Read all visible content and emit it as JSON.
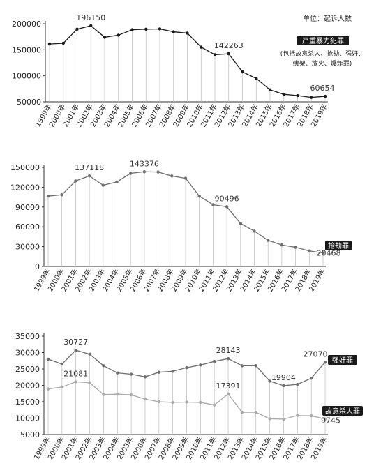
{
  "unit_note": "单位：起诉人数",
  "chart_data": [
    {
      "type": "line",
      "categories": [
        "1999年",
        "2000年",
        "2001年",
        "2002年",
        "2003年",
        "2004年",
        "2005年",
        "2006年",
        "2007年",
        "2008年",
        "2009年",
        "2010年",
        "2011年",
        "2012年",
        "2013年",
        "2014年",
        "2015年",
        "2016年",
        "2017年",
        "2018年",
        "2019年"
      ],
      "series": [
        {
          "name": "严重暴力犯罪",
          "note": "(包括故意杀人、抢劫、强奸、绑架、放火、爆炸罪)",
          "values": [
            161000,
            162500,
            189500,
            196150,
            174000,
            178000,
            188500,
            189500,
            190000,
            184500,
            182000,
            155000,
            140500,
            142263,
            107500,
            95000,
            73000,
            64500,
            62000,
            58500,
            60654
          ],
          "labels": {
            "3": "196150",
            "13": "142263",
            "20": "60654"
          },
          "color": "#1a1a1a"
        }
      ],
      "ylim": [
        50000,
        200000
      ],
      "yticks": [
        "200000",
        "150000",
        "100000",
        "50000"
      ],
      "xlabel": "",
      "ylabel": "",
      "title": ""
    },
    {
      "type": "line",
      "categories": [
        "1999年",
        "2000年",
        "2001年",
        "2002年",
        "2003年",
        "2004年",
        "2005年",
        "2006年",
        "2007年",
        "2008年",
        "2009年",
        "2010年",
        "2011年",
        "2012年",
        "2013年",
        "2014年",
        "2015年",
        "2016年",
        "2017年",
        "2018年",
        "2019年"
      ],
      "series": [
        {
          "name": "抢劫罪",
          "values": [
            106500,
            108500,
            129500,
            137118,
            123000,
            128000,
            141000,
            143376,
            143000,
            137000,
            133500,
            106500,
            93500,
            90496,
            65000,
            53500,
            39500,
            32500,
            29000,
            23500,
            20468
          ],
          "labels": {
            "3": "137118",
            "7": "143376",
            "13": "90496",
            "20": "20468"
          },
          "color": "#6e6e6e"
        }
      ],
      "ylim": [
        0,
        150000
      ],
      "yticks": [
        "150000",
        "120000",
        "90000",
        "60000",
        "30000",
        "0"
      ],
      "xlabel": "",
      "ylabel": "",
      "title": ""
    },
    {
      "type": "line",
      "categories": [
        "1999年",
        "2000年",
        "2001年",
        "2002年",
        "2003年",
        "2004年",
        "2005年",
        "2006年",
        "2007年",
        "2008年",
        "2009年",
        "2010年",
        "2011年",
        "2012年",
        "2013年",
        "2014年",
        "2015年",
        "2016年",
        "2017年",
        "2018年",
        "2019年"
      ],
      "series": [
        {
          "name": "强奸罪",
          "values": [
            28000,
            26500,
            30727,
            29500,
            26000,
            23800,
            23400,
            22600,
            24000,
            24300,
            25400,
            26200,
            27300,
            28143,
            26000,
            26000,
            21300,
            19904,
            20300,
            22200,
            27070
          ],
          "labels": {
            "2": "30727",
            "13": "28143",
            "17": "19904",
            "20": "27070"
          },
          "color": "#6e6e6e"
        },
        {
          "name": "故意杀人罪",
          "values": [
            18900,
            19500,
            21081,
            20800,
            17200,
            17300,
            17100,
            15800,
            15000,
            14800,
            14900,
            14800,
            14000,
            17391,
            11800,
            11800,
            9800,
            9700,
            10800,
            10700,
            9745
          ],
          "labels": {
            "2": "21081",
            "13": "17391",
            "20": "9745"
          },
          "color": "#aaaaaa"
        }
      ],
      "ylim": [
        5000,
        35000
      ],
      "yticks": [
        "35000",
        "30000",
        "25000",
        "20000",
        "15000",
        "10000",
        "5000"
      ],
      "xlabel": "",
      "ylabel": "",
      "title": ""
    }
  ]
}
